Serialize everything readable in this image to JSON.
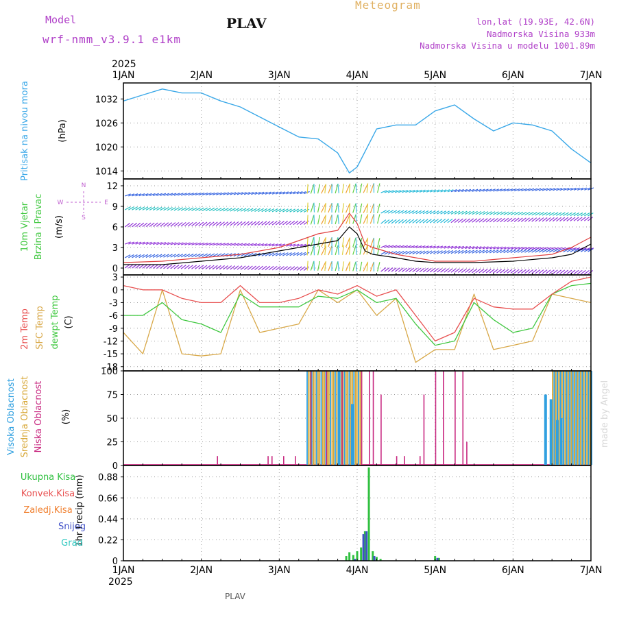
{
  "header": {
    "model_label": "Model",
    "model_run": "wrf-nmm_v3.9.1 e1km",
    "station": "PLAV",
    "meteogram_label": "Meteogram",
    "lonlat": "lon,lat (19.93E, 42.6N)",
    "altitude": "Nadmorska Visina 933m",
    "model_altitude": "Nadmorska Visina u modelu 1001.89m",
    "footer_station": "PLAV",
    "credit": "made by Angel"
  },
  "colors": {
    "pressure": "#3aa8e8",
    "wind_speed": "#000000",
    "gust": "#e04040",
    "temp2m": "#e85050",
    "sfc_temp": "#d8a848",
    "dewpt": "#40c840",
    "high_cloud": "#30a0e0",
    "mid_cloud": "#d8a838",
    "low_cloud": "#c82880",
    "total_precip": "#30c040",
    "snow": "#4050c8",
    "axis_purple": "#c060d0"
  },
  "chart_data": [
    {
      "type": "line",
      "panel": "pressure",
      "ylabel": "Pritisak na nivou mora",
      "units": "(hPa)",
      "ylim": [
        1012,
        1036
      ],
      "yticks": [
        1014,
        1020,
        1026,
        1032
      ],
      "x_days": [
        1,
        1.25,
        1.5,
        1.75,
        2,
        2.25,
        2.5,
        2.75,
        3,
        3.25,
        3.5,
        3.75,
        3.9,
        4,
        4.25,
        4.5,
        4.75,
        5,
        5.25,
        5.5,
        5.75,
        6,
        6.25,
        6.5,
        6.75,
        7
      ],
      "series": [
        {
          "values": [
            1031.5,
            1033,
            1034.5,
            1033.5,
            1033.5,
            1031.5,
            1030,
            1027.5,
            1025,
            1022.5,
            1022,
            1018.5,
            1013.5,
            1015,
            1024.5,
            1025.5,
            1025.5,
            1029,
            1030.5,
            1027,
            1024,
            1026,
            1025.5,
            1024,
            1019.5,
            1016
          ]
        }
      ]
    },
    {
      "type": "line",
      "panel": "wind",
      "ylabel": "10m Vjetar Brzina i Pravac",
      "units": "(m/s)",
      "direction_legend": {
        "north": "N",
        "east": "E",
        "west": "W",
        "south": "S"
      },
      "ylim": [
        -1,
        13
      ],
      "yticks": [
        0,
        3,
        6,
        9,
        12
      ],
      "x_days": [
        1,
        1.5,
        2,
        2.5,
        3,
        3.25,
        3.5,
        3.75,
        3.9,
        4,
        4.1,
        4.2,
        4.5,
        4.75,
        5,
        5.5,
        6,
        6.5,
        6.75,
        7
      ],
      "series": [
        {
          "values": [
            0.5,
            0.5,
            1,
            1.5,
            2.5,
            3,
            3.5,
            4,
            6,
            5,
            2.5,
            2,
            1.5,
            1,
            0.8,
            0.8,
            1,
            1.5,
            2,
            3.5
          ]
        },
        {
          "values": [
            0.8,
            1,
            1.5,
            2,
            3,
            4,
            5,
            5.5,
            8,
            6.5,
            3.5,
            3,
            2,
            1.5,
            1,
            1,
            1.5,
            2,
            3,
            4.5
          ]
        }
      ]
    },
    {
      "type": "line",
      "panel": "temperature",
      "ylabels": [
        "2m Temp",
        "SFC Temp",
        "dewpt Temp"
      ],
      "units": "(C)",
      "ylim": [
        -19,
        3.5
      ],
      "yticks": [
        3,
        0,
        -3,
        -6,
        -9,
        -12,
        -15,
        -18
      ],
      "x_days": [
        1,
        1.25,
        1.5,
        1.75,
        2,
        2.25,
        2.5,
        2.75,
        3,
        3.25,
        3.5,
        3.75,
        4,
        4.25,
        4.5,
        4.75,
        5,
        5.25,
        5.5,
        5.75,
        6,
        6.25,
        6.5,
        6.75,
        7
      ],
      "series": [
        {
          "values": [
            1,
            0,
            0,
            -2,
            -3,
            -3,
            1,
            -3,
            -3,
            -2,
            0,
            -1,
            1,
            -1.5,
            0,
            -6,
            -12,
            -10,
            -2,
            -4,
            -4.5,
            -4.5,
            -1,
            2,
            3
          ]
        },
        {
          "values": [
            -10,
            -15,
            0,
            -15,
            -15.5,
            -15,
            0,
            -10,
            -9,
            -8,
            0,
            -3,
            0,
            -6,
            -2,
            -17,
            -14,
            -14,
            -1,
            -14,
            -13,
            -12,
            -1,
            -2,
            -3
          ]
        },
        {
          "values": [
            -6,
            -6,
            -3,
            -7,
            -8,
            -10,
            -1,
            -4,
            -4,
            -4,
            -1.5,
            -2,
            0,
            -3,
            -2,
            -8,
            -13,
            -12,
            -3,
            -7,
            -10,
            -9,
            -1,
            1,
            1.5
          ]
        }
      ]
    },
    {
      "type": "bar",
      "panel": "cloud",
      "ylabels": [
        "Visoka Oblacnost",
        "Srednja Oblacnost",
        "Niska Oblacnost"
      ],
      "units": "(%)",
      "ylim": [
        0,
        100
      ],
      "yticks": [
        0,
        25,
        50,
        75,
        100
      ],
      "low_bars": [
        [
          2.2,
          10
        ],
        [
          2.85,
          10
        ],
        [
          2.9,
          10
        ],
        [
          3.05,
          10
        ],
        [
          3.2,
          10
        ],
        [
          3.4,
          100
        ],
        [
          3.6,
          100
        ],
        [
          3.8,
          100
        ],
        [
          4.05,
          100
        ],
        [
          4.15,
          100
        ],
        [
          4.2,
          100
        ],
        [
          4.3,
          75
        ],
        [
          4.5,
          10
        ],
        [
          4.6,
          10
        ],
        [
          4.8,
          10
        ],
        [
          4.85,
          75
        ],
        [
          5.0,
          100
        ],
        [
          5.1,
          100
        ],
        [
          5.25,
          100
        ],
        [
          5.35,
          100
        ],
        [
          5.4,
          25
        ]
      ],
      "mid_band": [
        3.35,
        4.05
      ],
      "high_band": [
        6.5,
        7.0
      ],
      "high_bars": [
        [
          3.75,
          100
        ],
        [
          3.92,
          65
        ],
        [
          6.4,
          75
        ],
        [
          6.47,
          70
        ],
        [
          6.55,
          48
        ],
        [
          6.6,
          50
        ]
      ]
    },
    {
      "type": "bar",
      "panel": "precip",
      "ylabel": "1hr Precip",
      "units": "(mm)",
      "legend": [
        "Ukupna Kisa",
        "Konvek.Kisa",
        "Zaledj.Kisa",
        "Snijeg",
        "Grad"
      ],
      "ylim": [
        0,
        1.0
      ],
      "yticks": [
        0,
        0.22,
        0.44,
        0.66,
        0.88
      ],
      "total": [
        [
          3.86,
          0.05
        ],
        [
          3.9,
          0.09
        ],
        [
          3.95,
          0.06
        ],
        [
          4.0,
          0.1
        ],
        [
          4.05,
          0.14
        ],
        [
          4.1,
          0.31
        ],
        [
          4.15,
          0.98
        ],
        [
          4.2,
          0.1
        ],
        [
          4.25,
          0.04
        ],
        [
          4.3,
          0.02
        ],
        [
          5.0,
          0.05
        ],
        [
          5.05,
          0.03
        ]
      ],
      "snow": [
        [
          3.97,
          0.02
        ],
        [
          4.08,
          0.28
        ],
        [
          4.12,
          0.31
        ],
        [
          4.22,
          0.05
        ],
        [
          5.03,
          0.03
        ]
      ]
    }
  ],
  "xaxis": {
    "year_label": "2025",
    "ticks": [
      "1JAN",
      "2JAN",
      "3JAN",
      "4JAN",
      "5JAN",
      "6JAN",
      "7JAN"
    ]
  }
}
